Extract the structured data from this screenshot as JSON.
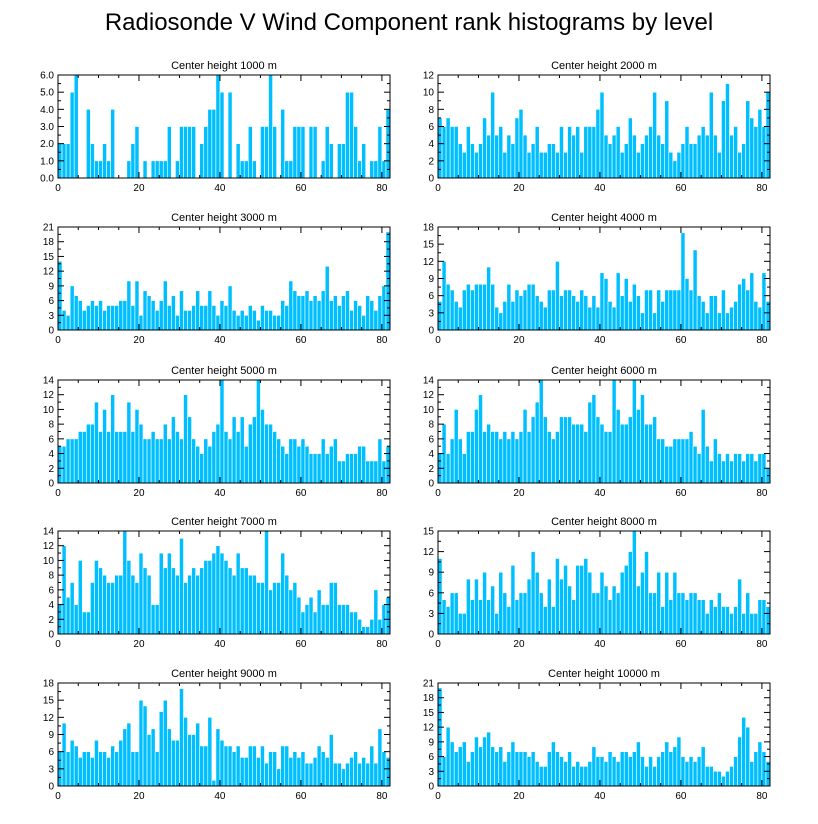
{
  "figure_title": "Radiosonde V Wind Component rank histograms by level",
  "colors": {
    "bar": "#00bfff",
    "bar_edge": "#ffffff",
    "axis": "#000000"
  },
  "chart_data": [
    {
      "type": "bar",
      "title": "Center height 1000 m",
      "xlim": [
        0,
        82
      ],
      "xticks": [
        "0",
        "20",
        "40",
        "60",
        "80"
      ],
      "ylim": [
        0,
        6
      ],
      "yticks": [
        "0.0",
        "1.0",
        "2.0",
        "3.0",
        "4.0",
        "5.0",
        "6.0"
      ],
      "values": [
        2,
        2,
        2,
        5,
        6,
        0,
        0,
        4,
        2,
        1,
        1,
        2,
        1,
        4,
        0,
        0,
        0,
        1,
        2,
        3,
        0,
        1,
        0,
        1,
        1,
        1,
        1,
        3,
        0,
        1,
        3,
        3,
        3,
        3,
        0,
        2,
        3,
        4,
        4,
        6,
        5,
        0,
        5,
        0,
        2,
        1,
        1,
        3,
        1,
        0,
        3,
        3,
        6,
        3,
        0,
        4,
        1,
        1,
        3,
        3,
        3,
        0,
        3,
        3,
        0,
        1,
        3,
        2,
        0,
        2,
        2,
        5,
        5,
        3,
        1,
        2,
        0,
        1,
        1,
        3,
        1,
        4
      ]
    },
    {
      "type": "bar",
      "title": "Center height 2000 m",
      "xlim": [
        0,
        82
      ],
      "xticks": [
        "0",
        "20",
        "40",
        "60",
        "80"
      ],
      "ylim": [
        0,
        12
      ],
      "yticks": [
        "0",
        "2",
        "4",
        "6",
        "8",
        "10",
        "12"
      ],
      "values": [
        7,
        6,
        7,
        6,
        6,
        4,
        3,
        6,
        4,
        3,
        4,
        7,
        5,
        10,
        5,
        6,
        3,
        5,
        4,
        7,
        8,
        5,
        3,
        4,
        6,
        3,
        3,
        4,
        4,
        3,
        6,
        3,
        6,
        5,
        6,
        3,
        6,
        6,
        6,
        8,
        10,
        5,
        4,
        5,
        6,
        3,
        4,
        7,
        5,
        3,
        4,
        5,
        6,
        10,
        5,
        4,
        9,
        3,
        2,
        3,
        4,
        6,
        4,
        4,
        5,
        6,
        5,
        10,
        5,
        3,
        9,
        11,
        5,
        6,
        3,
        4,
        9,
        7,
        6,
        8,
        6,
        10
      ]
    },
    {
      "type": "bar",
      "title": "Center height 3000 m",
      "xlim": [
        0,
        82
      ],
      "xticks": [
        "0",
        "20",
        "40",
        "60",
        "80"
      ],
      "ylim": [
        0,
        21
      ],
      "yticks": [
        "0",
        "3",
        "6",
        "9",
        "12",
        "15",
        "18",
        "21"
      ],
      "values": [
        14,
        4,
        3,
        9,
        7,
        6,
        4,
        5,
        6,
        5,
        6,
        4,
        5,
        5,
        5,
        6,
        6,
        10,
        5,
        10,
        3,
        8,
        7,
        6,
        4,
        6,
        10,
        5,
        7,
        3,
        8,
        4,
        4,
        5,
        8,
        5,
        5,
        8,
        5,
        3,
        6,
        5,
        9,
        4,
        3,
        4,
        3,
        5,
        4,
        2,
        5,
        4,
        4,
        3,
        3,
        6,
        5,
        10,
        8,
        7,
        7,
        8,
        6,
        7,
        6,
        8,
        13,
        6,
        7,
        5,
        7,
        8,
        4,
        6,
        5,
        3,
        7,
        6,
        4,
        7,
        9,
        20
      ]
    },
    {
      "type": "bar",
      "title": "Center height 4000 m",
      "xlim": [
        0,
        82
      ],
      "xticks": [
        "0",
        "20",
        "40",
        "60",
        "80"
      ],
      "ylim": [
        0,
        18
      ],
      "yticks": [
        "0",
        "3",
        "6",
        "9",
        "12",
        "15",
        "18"
      ],
      "values": [
        5,
        12,
        8,
        7,
        5,
        4,
        7,
        8,
        7,
        8,
        8,
        8,
        11,
        8,
        4,
        3,
        5,
        8,
        5,
        7,
        6,
        7,
        8,
        8,
        6,
        5,
        4,
        7,
        7,
        12,
        6,
        7,
        7,
        6,
        5,
        7,
        6,
        4,
        6,
        4,
        10,
        9,
        5,
        4,
        10,
        6,
        9,
        5,
        8,
        6,
        3,
        7,
        7,
        3,
        7,
        5,
        7,
        7,
        7,
        7,
        17,
        9,
        7,
        14,
        6,
        5,
        3,
        6,
        6,
        3,
        7,
        3,
        4,
        5,
        8,
        9,
        7,
        10,
        5,
        4,
        10,
        5
      ]
    },
    {
      "type": "bar",
      "title": "Center height 5000 m",
      "xlim": [
        0,
        82
      ],
      "xticks": [
        "0",
        "20",
        "40",
        "60",
        "80"
      ],
      "ylim": [
        0,
        14
      ],
      "yticks": [
        "0",
        "2",
        "4",
        "6",
        "8",
        "10",
        "12",
        "14"
      ],
      "values": [
        5,
        5,
        6,
        6,
        6,
        7,
        7,
        8,
        8,
        11,
        7,
        10,
        7,
        12,
        7,
        7,
        7,
        11,
        7,
        10,
        8,
        6,
        6,
        7,
        6,
        6,
        8,
        6,
        9,
        7,
        6,
        12,
        9,
        6,
        5,
        4,
        6,
        5,
        7,
        8,
        14,
        7,
        6,
        9,
        7,
        9,
        5,
        8,
        9,
        14,
        10,
        8,
        8,
        7,
        6,
        5,
        4,
        6,
        6,
        5,
        6,
        5,
        4,
        4,
        4,
        6,
        4,
        5,
        6,
        3,
        3,
        4,
        4,
        4,
        5,
        5,
        3,
        3,
        3,
        6,
        3,
        5
      ]
    },
    {
      "type": "bar",
      "title": "Center height 6000 m",
      "xlim": [
        0,
        82
      ],
      "xticks": [
        "0",
        "20",
        "40",
        "60",
        "80"
      ],
      "ylim": [
        0,
        14
      ],
      "yticks": [
        "0",
        "2",
        "4",
        "6",
        "8",
        "10",
        "12",
        "14"
      ],
      "values": [
        4,
        8,
        4,
        6,
        10,
        6,
        4,
        7,
        7,
        10,
        12,
        7,
        8,
        7,
        7,
        6,
        7,
        6,
        7,
        6,
        7,
        10,
        7,
        9,
        11,
        14,
        9,
        7,
        6,
        7,
        9,
        9,
        9,
        8,
        8,
        8,
        7,
        11,
        12,
        9,
        8,
        7,
        7,
        14,
        10,
        8,
        8,
        9,
        14,
        10,
        12,
        8,
        8,
        9,
        6,
        6,
        5,
        5,
        6,
        6,
        6,
        6,
        7,
        5,
        4,
        10,
        5,
        3,
        6,
        4,
        3,
        4,
        3,
        4,
        4,
        3,
        4,
        4,
        3,
        4,
        4,
        2
      ]
    },
    {
      "type": "bar",
      "title": "Center height 7000 m",
      "xlim": [
        0,
        82
      ],
      "xticks": [
        "0",
        "20",
        "40",
        "60",
        "80"
      ],
      "ylim": [
        0,
        14
      ],
      "yticks": [
        "0",
        "2",
        "4",
        "6",
        "8",
        "10",
        "12",
        "14"
      ],
      "values": [
        4,
        12,
        5,
        7,
        4,
        10,
        3,
        3,
        7,
        10,
        9,
        8,
        7,
        7,
        8,
        8,
        14,
        10,
        8,
        7,
        11,
        9,
        8,
        4,
        4,
        11,
        9,
        11,
        9,
        8,
        13,
        7,
        8,
        9,
        8,
        9,
        10,
        10,
        11,
        12,
        11,
        10,
        9,
        8,
        11,
        9,
        9,
        8,
        8,
        7,
        7,
        14,
        6,
        7,
        7,
        11,
        8,
        6,
        7,
        5,
        3,
        4,
        5,
        3,
        6,
        4,
        4,
        7,
        7,
        4,
        4,
        4,
        3,
        3,
        2,
        1,
        1,
        2,
        6,
        2,
        4,
        5
      ]
    },
    {
      "type": "bar",
      "title": "Center height 8000 m",
      "xlim": [
        0,
        82
      ],
      "xticks": [
        "0",
        "20",
        "40",
        "60",
        "80"
      ],
      "ylim": [
        0,
        15
      ],
      "yticks": [
        "0",
        "3",
        "6",
        "9",
        "12",
        "15"
      ],
      "values": [
        11,
        5,
        4,
        6,
        6,
        3,
        3,
        8,
        5,
        8,
        5,
        9,
        5,
        7,
        3,
        9,
        6,
        4,
        10,
        5,
        6,
        6,
        8,
        12,
        9,
        6,
        4,
        8,
        4,
        11,
        8,
        10,
        7,
        5,
        10,
        10,
        11,
        9,
        6,
        6,
        9,
        7,
        5,
        7,
        6,
        9,
        10,
        12,
        15,
        7,
        9,
        12,
        6,
        6,
        9,
        4,
        9,
        5,
        9,
        6,
        6,
        5,
        6,
        6,
        5,
        5,
        3,
        5,
        4,
        6,
        4,
        4,
        3,
        4,
        8,
        3,
        6,
        3,
        3,
        5,
        5,
        4
      ]
    },
    {
      "type": "bar",
      "title": "Center height 9000 m",
      "xlim": [
        0,
        82
      ],
      "xticks": [
        "0",
        "20",
        "40",
        "60",
        "80"
      ],
      "ylim": [
        0,
        18
      ],
      "yticks": [
        "0",
        "3",
        "6",
        "9",
        "12",
        "15",
        "18"
      ],
      "values": [
        6,
        11,
        6,
        8,
        7,
        5,
        6,
        6,
        5,
        8,
        6,
        6,
        5,
        7,
        6,
        8,
        10,
        11,
        6,
        6,
        15,
        14,
        9,
        10,
        6,
        13,
        15,
        10,
        8,
        8,
        17,
        12,
        9,
        9,
        11,
        7,
        7,
        12,
        1,
        10,
        8,
        7,
        7,
        6,
        7,
        5,
        5,
        7,
        7,
        5,
        7,
        4,
        6,
        6,
        3,
        7,
        7,
        5,
        6,
        5,
        6,
        4,
        4,
        5,
        7,
        6,
        5,
        9,
        4,
        4,
        3,
        4,
        5,
        6,
        4,
        5,
        4,
        7,
        4,
        10,
        6,
        5
      ]
    },
    {
      "type": "bar",
      "title": "Center height 10000 m",
      "xlim": [
        0,
        82
      ],
      "xticks": [
        "0",
        "20",
        "40",
        "60",
        "80"
      ],
      "ylim": [
        0,
        21
      ],
      "yticks": [
        "0",
        "3",
        "6",
        "9",
        "12",
        "15",
        "18",
        "21"
      ],
      "values": [
        20,
        6,
        12,
        9,
        7,
        8,
        9,
        5,
        7,
        10,
        8,
        10,
        11,
        8,
        7,
        8,
        5,
        7,
        9,
        7,
        7,
        7,
        6,
        7,
        5,
        4,
        4,
        7,
        9,
        7,
        6,
        5,
        7,
        4,
        5,
        4,
        4,
        5,
        8,
        6,
        6,
        5,
        7,
        6,
        5,
        7,
        7,
        6,
        7,
        9,
        6,
        4,
        6,
        4,
        6,
        7,
        9,
        7,
        8,
        10,
        6,
        5,
        6,
        5,
        6,
        8,
        4,
        4,
        3,
        3,
        2,
        3,
        4,
        6,
        10,
        14,
        12,
        5,
        7,
        9,
        7,
        5
      ]
    }
  ]
}
